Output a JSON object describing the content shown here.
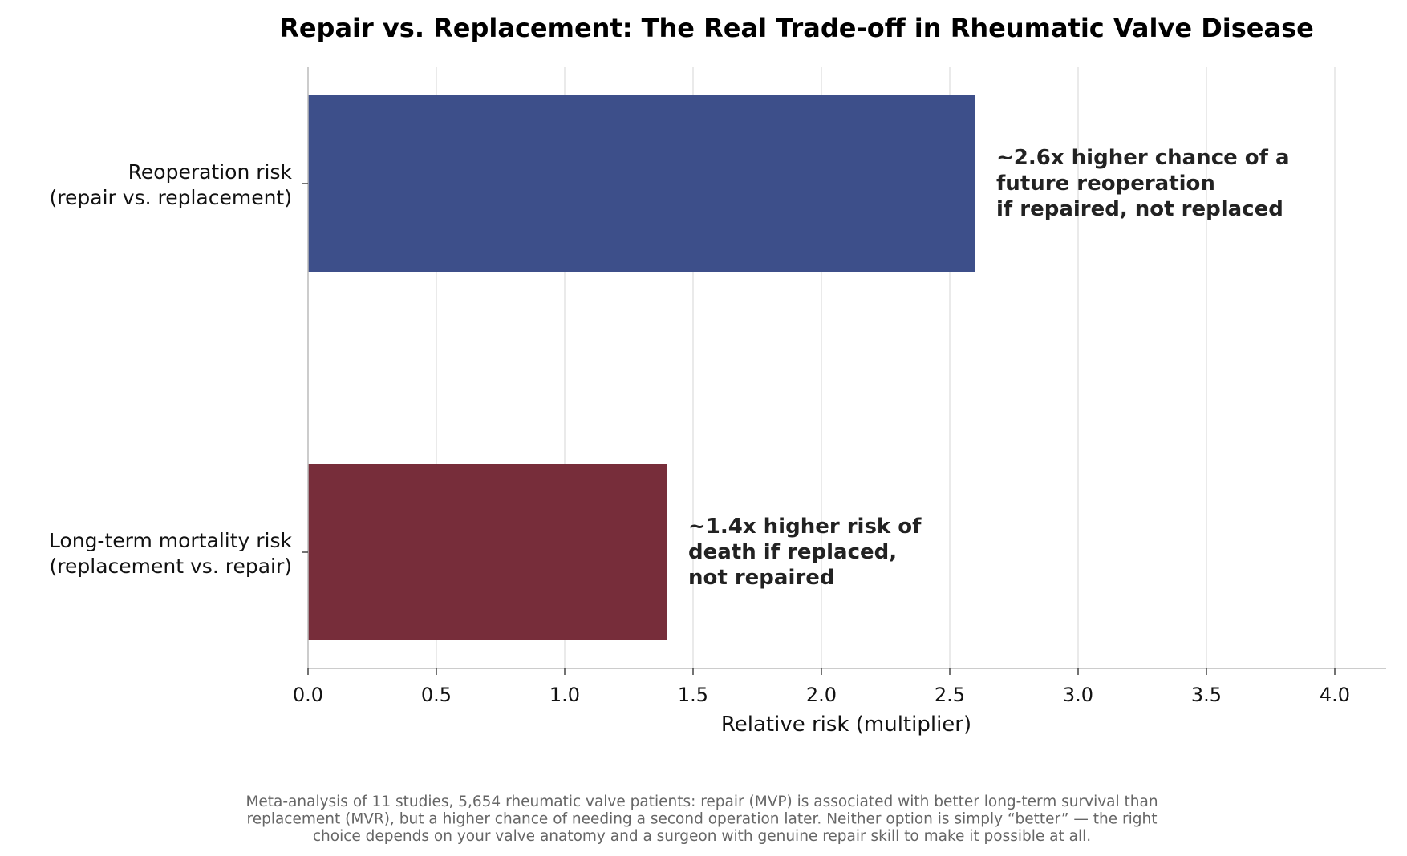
{
  "chart_data": {
    "type": "bar",
    "orientation": "horizontal",
    "title": "Repair vs. Replacement: The Real Trade-off in Rheumatic Valve Disease",
    "xlabel": "Relative risk (multiplier)",
    "ylabel": "",
    "xlim": [
      0,
      4.2
    ],
    "xticks": [
      "0.0",
      "0.5",
      "1.0",
      "1.5",
      "2.0",
      "2.5",
      "3.0",
      "3.5",
      "4.0"
    ],
    "grid": "vertical",
    "categories": [
      {
        "label_lines": [
          "Reoperation risk",
          "(repair vs. replacement)"
        ],
        "value": 2.6,
        "color": "#3d4f8a",
        "annotation_lines": [
          "~2.6x higher chance of a",
          "future reoperation",
          "if repaired, not replaced"
        ]
      },
      {
        "label_lines": [
          "Long-term mortality risk",
          "(replacement vs. repair)"
        ],
        "value": 1.4,
        "color": "#772d3a",
        "annotation_lines": [
          "~1.4x higher risk of",
          "death if replaced,",
          "not repaired"
        ]
      }
    ],
    "footnote_lines": [
      "Meta-analysis of 11 studies, 5,654 rheumatic valve patients: repair (MVP) is associated with better long-term survival than",
      "replacement (MVR), but a higher chance of needing a second operation later. Neither option is simply “better” — the right",
      "choice depends on your valve anatomy and a surgeon with genuine repair skill to make it possible at all."
    ]
  }
}
